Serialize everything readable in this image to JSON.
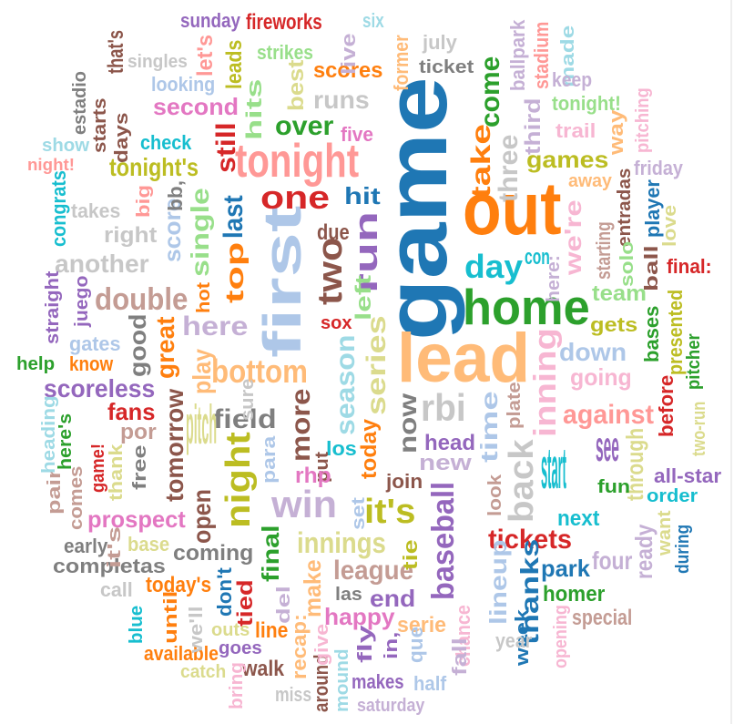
{
  "words": [
    {
      "text": "game",
      "color": "#1f77b4",
      "vertical": true
    },
    {
      "text": "lead",
      "color": "#ffbb78",
      "vertical": false
    },
    {
      "text": "out",
      "color": "#ff7f0e",
      "vertical": false
    },
    {
      "text": "first",
      "color": "#aec7e8",
      "vertical": true
    },
    {
      "text": "home",
      "color": "#2ca02c",
      "vertical": false
    },
    {
      "text": "tonight",
      "color": "#ff9896",
      "vertical": false
    },
    {
      "text": "one",
      "color": "#d62728",
      "vertical": false
    },
    {
      "text": "two",
      "color": "#8c564b",
      "vertical": true
    },
    {
      "text": "run",
      "color": "#9467bd",
      "vertical": true
    },
    {
      "text": "win",
      "color": "#c5b0d5",
      "vertical": false
    },
    {
      "text": "night",
      "color": "#bcbd22",
      "vertical": true
    },
    {
      "text": "inning",
      "color": "#f7b6d2",
      "vertical": true
    },
    {
      "text": "rbi",
      "color": "#c7c7c7",
      "vertical": false
    },
    {
      "text": "it's",
      "color": "#bcbd22",
      "vertical": false
    },
    {
      "text": "back",
      "color": "#c7c7c7",
      "vertical": true
    },
    {
      "text": "bottom",
      "color": "#ffbb78",
      "vertical": false
    },
    {
      "text": "day",
      "color": "#17becf",
      "vertical": false
    },
    {
      "text": "series",
      "color": "#dbdb8d",
      "vertical": true
    },
    {
      "text": "season",
      "color": "#9edae5",
      "vertical": true
    },
    {
      "text": "baseball",
      "color": "#9467bd",
      "vertical": true
    },
    {
      "text": "now",
      "color": "#7f7f7f",
      "vertical": true
    },
    {
      "text": "time",
      "color": "#aec7e8",
      "vertical": true
    },
    {
      "text": "field",
      "color": "#7f7f7f",
      "vertical": false
    },
    {
      "text": "more",
      "color": "#8c564b",
      "vertical": true
    },
    {
      "text": "double",
      "color": "#c49c94",
      "vertical": false
    },
    {
      "text": "innings",
      "color": "#dbdb8d",
      "vertical": false
    },
    {
      "text": "tickets",
      "color": "#d62728",
      "vertical": false
    },
    {
      "text": "top",
      "color": "#ff7f0e",
      "vertical": true
    },
    {
      "text": "last",
      "color": "#1f77b4",
      "vertical": true
    },
    {
      "text": "over",
      "color": "#2ca02c",
      "vertical": false
    },
    {
      "text": "runs",
      "color": "#c7c7c7",
      "vertical": false
    },
    {
      "text": "tonight's",
      "color": "#bcbd22",
      "vertical": false
    },
    {
      "text": "second",
      "color": "#e377c2",
      "vertical": false
    },
    {
      "text": "hit",
      "color": "#1f77b4",
      "vertical": false
    },
    {
      "text": "still",
      "color": "#d62728",
      "vertical": true
    },
    {
      "text": "single",
      "color": "#98df8a",
      "vertical": true
    },
    {
      "text": "score",
      "color": "#aec7e8",
      "vertical": true
    },
    {
      "text": "here",
      "color": "#c5b0d5",
      "vertical": false
    },
    {
      "text": "pitch",
      "color": "#dbdb8d",
      "vertical": false
    },
    {
      "text": "play",
      "color": "#ffbb78",
      "vertical": true
    },
    {
      "text": "great",
      "color": "#ff7f0e",
      "vertical": true
    },
    {
      "text": "tomorrow",
      "color": "#8c564b",
      "vertical": true
    },
    {
      "text": "league",
      "color": "#c49c94",
      "vertical": false
    },
    {
      "text": "end",
      "color": "#9467bd",
      "vertical": false
    },
    {
      "text": "happy",
      "color": "#e377c2",
      "vertical": false
    },
    {
      "text": "make",
      "color": "#ffbb78",
      "vertical": true
    },
    {
      "text": "final",
      "color": "#2ca02c",
      "vertical": true
    },
    {
      "text": "coming",
      "color": "#7f7f7f",
      "vertical": false
    },
    {
      "text": "prospect",
      "color": "#e377c2",
      "vertical": false
    },
    {
      "text": "today",
      "color": "#ff7f0e",
      "vertical": true
    },
    {
      "text": "new",
      "color": "#c5b0d5",
      "vertical": false
    },
    {
      "text": "head",
      "color": "#9467bd",
      "vertical": false
    },
    {
      "text": "thanks",
      "color": "#1f77b4",
      "vertical": true
    },
    {
      "text": "lineup",
      "color": "#aec7e8",
      "vertical": true
    },
    {
      "text": "start",
      "color": "#17becf",
      "vertical": false
    },
    {
      "text": "park",
      "color": "#1f77b4",
      "vertical": false
    },
    {
      "text": "homer",
      "color": "#2ca02c",
      "vertical": false
    },
    {
      "text": "against",
      "color": "#ff9896",
      "vertical": false
    },
    {
      "text": "see",
      "color": "#9467bd",
      "vertical": false
    },
    {
      "text": "through",
      "color": "#dbdb8d",
      "vertical": true
    },
    {
      "text": "going",
      "color": "#f7b6d2",
      "vertical": false
    },
    {
      "text": "down",
      "color": "#aec7e8",
      "vertical": false
    },
    {
      "text": "team",
      "color": "#98df8a",
      "vertical": false
    },
    {
      "text": "gets",
      "color": "#bcbd22",
      "vertical": false
    },
    {
      "text": "games",
      "color": "#bcbd22",
      "vertical": false
    },
    {
      "text": "we're",
      "color": "#f7b6d2",
      "vertical": true
    },
    {
      "text": "three",
      "color": "#c7c7c7",
      "vertical": true
    },
    {
      "text": "take",
      "color": "#ff7f0e",
      "vertical": true
    },
    {
      "text": "come",
      "color": "#2ca02c",
      "vertical": true
    },
    {
      "text": "third",
      "color": "#c5b0d5",
      "vertical": true
    },
    {
      "text": "scoreless",
      "color": "#9467bd",
      "vertical": false
    },
    {
      "text": "fans",
      "color": "#d62728",
      "vertical": false
    },
    {
      "text": "another",
      "color": "#c7c7c7",
      "vertical": false
    },
    {
      "text": "hits",
      "color": "#98df8a",
      "vertical": true
    },
    {
      "text": "scores",
      "color": "#ff7f0e",
      "vertical": false
    },
    {
      "text": "ticket",
      "color": "#7f7f7f",
      "vertical": false
    },
    {
      "text": "los",
      "color": "#17becf",
      "vertical": false
    },
    {
      "text": "join",
      "color": "#8c564b",
      "vertical": false
    },
    {
      "text": "good",
      "color": "#7f7f7f",
      "vertical": true
    },
    {
      "text": "right",
      "color": "#c7c7c7",
      "vertical": false
    },
    {
      "text": "tied",
      "color": "#d62728",
      "vertical": true
    },
    {
      "text": "today's",
      "color": "#ff7f0e",
      "vertical": false
    },
    {
      "text": "open",
      "color": "#8c564b",
      "vertical": true
    },
    {
      "text": "serie",
      "color": "#ffbb78",
      "vertical": false
    },
    {
      "text": "next",
      "color": "#17becf",
      "vertical": false
    },
    {
      "text": "four",
      "color": "#c5b0d5",
      "vertical": false
    },
    {
      "text": "order",
      "color": "#17becf",
      "vertical": false
    },
    {
      "text": "all-star",
      "color": "#9467bd",
      "vertical": false
    },
    {
      "text": "fireworks",
      "color": "#d62728",
      "vertical": false
    },
    {
      "text": "sunday",
      "color": "#9467bd",
      "vertical": false
    },
    {
      "text": "six",
      "color": "#9edae5",
      "vertical": false
    },
    {
      "text": "july",
      "color": "#c7c7c7",
      "vertical": false
    },
    {
      "text": "ballpark",
      "color": "#c5b0d5",
      "vertical": true
    },
    {
      "text": "stadium",
      "color": "#ff9896",
      "vertical": true
    },
    {
      "text": "made",
      "color": "#9edae5",
      "vertical": true
    },
    {
      "text": "keep",
      "color": "#c5b0d5",
      "vertical": false
    },
    {
      "text": "tonight!",
      "color": "#98df8a",
      "vertical": false
    },
    {
      "text": "pitching",
      "color": "#f7b6d2",
      "vertical": true
    },
    {
      "text": "way",
      "color": "#ffbb78",
      "vertical": true
    },
    {
      "text": "friday",
      "color": "#c5b0d5",
      "vertical": false
    },
    {
      "text": "trail",
      "color": "#f7b6d2",
      "vertical": false
    },
    {
      "text": "away",
      "color": "#ffbb78",
      "vertical": false
    },
    {
      "text": "entradas",
      "color": "#8c564b",
      "vertical": true
    },
    {
      "text": "player",
      "color": "#1f77b4",
      "vertical": true
    },
    {
      "text": "love",
      "color": "#dbdb8d",
      "vertical": true
    },
    {
      "text": "ball",
      "color": "#8c564b",
      "vertical": true
    },
    {
      "text": "final:",
      "color": "#d62728",
      "vertical": false
    },
    {
      "text": "solo",
      "color": "#98df8a",
      "vertical": true
    },
    {
      "text": "starting",
      "color": "#c49c94",
      "vertical": true
    },
    {
      "text": "here:",
      "color": "#c5b0d5",
      "vertical": true
    },
    {
      "text": "con",
      "color": "#17becf",
      "vertical": false
    },
    {
      "text": "presented",
      "color": "#bcbd22",
      "vertical": true
    },
    {
      "text": "bases",
      "color": "#2ca02c",
      "vertical": true
    },
    {
      "text": "pitcher",
      "color": "#2ca02c",
      "vertical": true
    },
    {
      "text": "before",
      "color": "#d62728",
      "vertical": true
    },
    {
      "text": "two-run",
      "color": "#dbdb8d",
      "vertical": true
    },
    {
      "text": "fun",
      "color": "#2ca02c",
      "vertical": false
    },
    {
      "text": "want",
      "color": "#dbdb8d",
      "vertical": true
    },
    {
      "text": "during",
      "color": "#1f77b4",
      "vertical": true
    },
    {
      "text": "ready",
      "color": "#c5b0d5",
      "vertical": true
    },
    {
      "text": "special",
      "color": "#c49c94",
      "vertical": false
    },
    {
      "text": "opening",
      "color": "#f7b6d2",
      "vertical": true
    },
    {
      "text": "week",
      "color": "#1f77b4",
      "vertical": true
    },
    {
      "text": "chance",
      "color": "#f7b6d2",
      "vertical": true
    },
    {
      "text": "year",
      "color": "#c7c7c7",
      "vertical": false
    },
    {
      "text": "half",
      "color": "#aec7e8",
      "vertical": false
    },
    {
      "text": "saturday",
      "color": "#c5b0d5",
      "vertical": false
    },
    {
      "text": "makes",
      "color": "#9467bd",
      "vertical": false
    },
    {
      "text": "mound",
      "color": "#9edae5",
      "vertical": true
    },
    {
      "text": "around",
      "color": "#8c564b",
      "vertical": true
    },
    {
      "text": "miss",
      "color": "#c7c7c7",
      "vertical": false
    },
    {
      "text": "recap:",
      "color": "#ffbb78",
      "vertical": true
    },
    {
      "text": "give",
      "color": "#f7b6d2",
      "vertical": true
    },
    {
      "text": "walk",
      "color": "#8c564b",
      "vertical": false
    },
    {
      "text": "bring",
      "color": "#f7b6d2",
      "vertical": true
    },
    {
      "text": "goes",
      "color": "#9467bd",
      "vertical": false
    },
    {
      "text": "catch",
      "color": "#dbdb8d",
      "vertical": false
    },
    {
      "text": "available",
      "color": "#ff7f0e",
      "vertical": false
    },
    {
      "text": "outs",
      "color": "#dbdb8d",
      "vertical": false
    },
    {
      "text": "line",
      "color": "#ff7f0e",
      "vertical": false
    },
    {
      "text": "we'll",
      "color": "#c7c7c7",
      "vertical": true
    },
    {
      "text": "until",
      "color": "#ff7f0e",
      "vertical": true
    },
    {
      "text": "blue",
      "color": "#17becf",
      "vertical": true
    },
    {
      "text": "call",
      "color": "#c7c7c7",
      "vertical": false
    },
    {
      "text": "don't",
      "color": "#1f77b4",
      "vertical": true
    },
    {
      "text": "del",
      "color": "#c5b0d5",
      "vertical": true
    },
    {
      "text": "las",
      "color": "#7f7f7f",
      "vertical": false
    },
    {
      "text": "fly",
      "color": "#9467bd",
      "vertical": true
    },
    {
      "text": "in,",
      "color": "#9467bd",
      "vertical": true
    },
    {
      "text": "que",
      "color": "#aec7e8",
      "vertical": true
    },
    {
      "text": "fall",
      "color": "#c5b0d5",
      "vertical": true
    },
    {
      "text": "tie",
      "color": "#bcbd22",
      "vertical": true
    },
    {
      "text": "set",
      "color": "#aec7e8",
      "vertical": true
    },
    {
      "text": "put",
      "color": "#8c564b",
      "vertical": true
    },
    {
      "text": "para",
      "color": "#aec7e8",
      "vertical": true
    },
    {
      "text": "rhp",
      "color": "#e377c2",
      "vertical": false
    },
    {
      "text": "look",
      "color": "#c49c94",
      "vertical": true
    },
    {
      "text": "plate",
      "color": "#c49c94",
      "vertical": true
    },
    {
      "text": "sure",
      "color": "#c7c7c7",
      "vertical": true
    },
    {
      "text": "base",
      "color": "#dbdb8d",
      "vertical": false
    },
    {
      "text": "completas",
      "color": "#7f7f7f",
      "vertical": false
    },
    {
      "text": "early",
      "color": "#7f7f7f",
      "vertical": false
    },
    {
      "text": "it's",
      "color": "#c49c94",
      "vertical": true
    },
    {
      "text": "comes",
      "color": "#c49c94",
      "vertical": true
    },
    {
      "text": "pair",
      "color": "#c49c94",
      "vertical": true
    },
    {
      "text": "game!",
      "color": "#d62728",
      "vertical": true
    },
    {
      "text": "heading",
      "color": "#9edae5",
      "vertical": true
    },
    {
      "text": "here's",
      "color": "#2ca02c",
      "vertical": true
    },
    {
      "text": "thank",
      "color": "#dbdb8d",
      "vertical": true
    },
    {
      "text": "free",
      "color": "#7f7f7f",
      "vertical": true
    },
    {
      "text": "por",
      "color": "#c49c94",
      "vertical": false
    },
    {
      "text": "help",
      "color": "#2ca02c",
      "vertical": false
    },
    {
      "text": "know",
      "color": "#ff7f0e",
      "vertical": false
    },
    {
      "text": "gates",
      "color": "#aec7e8",
      "vertical": false
    },
    {
      "text": "straight",
      "color": "#9467bd",
      "vertical": true
    },
    {
      "text": "juego",
      "color": "#9467bd",
      "vertical": true
    },
    {
      "text": "hot",
      "color": "#ff7f0e",
      "vertical": true
    },
    {
      "text": "takes",
      "color": "#c7c7c7",
      "vertical": false
    },
    {
      "text": "big",
      "color": "#ff9896",
      "vertical": true
    },
    {
      "text": "congrats",
      "color": "#17becf",
      "vertical": true
    },
    {
      "text": "night!",
      "color": "#ff9896",
      "vertical": false
    },
    {
      "text": "show",
      "color": "#9edae5",
      "vertical": false
    },
    {
      "text": "starts",
      "color": "#8c564b",
      "vertical": true
    },
    {
      "text": "days",
      "color": "#8c564b",
      "vertical": true
    },
    {
      "text": "check",
      "color": "#17becf",
      "vertical": false
    },
    {
      "text": "bb,",
      "color": "#7f7f7f",
      "vertical": true
    },
    {
      "text": "estadio",
      "color": "#7f7f7f",
      "vertical": true
    },
    {
      "text": "that's",
      "color": "#8c564b",
      "vertical": true
    },
    {
      "text": "singles",
      "color": "#c7c7c7",
      "vertical": false
    },
    {
      "text": "let's",
      "color": "#ff9896",
      "vertical": true
    },
    {
      "text": "leads",
      "color": "#bcbd22",
      "vertical": true
    },
    {
      "text": "strikes",
      "color": "#98df8a",
      "vertical": false
    },
    {
      "text": "looking",
      "color": "#aec7e8",
      "vertical": false
    },
    {
      "text": "live",
      "color": "#c5b0d5",
      "vertical": true
    },
    {
      "text": "former",
      "color": "#ffbb78",
      "vertical": true
    },
    {
      "text": "best",
      "color": "#dbdb8d",
      "vertical": true
    },
    {
      "text": "five",
      "color": "#e377c2",
      "vertical": false
    },
    {
      "text": "due",
      "color": "#8c564b",
      "vertical": false
    },
    {
      "text": "left",
      "color": "#98df8a",
      "vertical": true
    },
    {
      "text": "sox",
      "color": "#d62728",
      "vertical": false
    }
  ]
}
